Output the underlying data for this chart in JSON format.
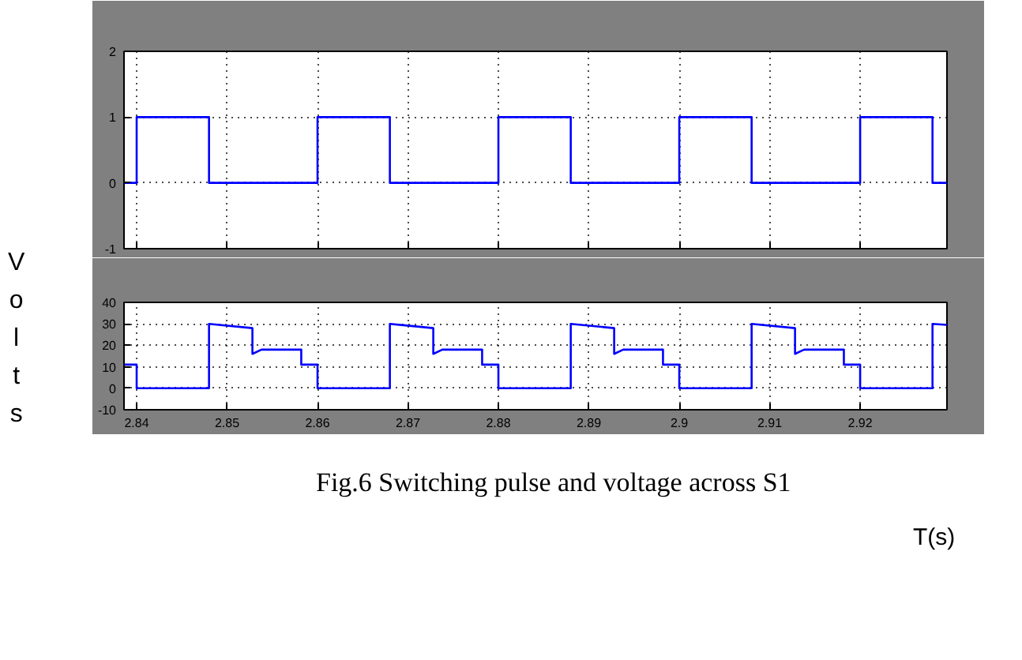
{
  "chart_data": [
    {
      "type": "line",
      "ylabel": "Volts",
      "xlim": [
        2.8386,
        2.9296
      ],
      "xticks": [
        2.84,
        2.85,
        2.86,
        2.87,
        2.88,
        2.89,
        2.9,
        2.91,
        2.92
      ],
      "ylim": [
        -1,
        2
      ],
      "yticks": [
        -1,
        0,
        1,
        2
      ],
      "tick_labels": "y",
      "grid": true,
      "series": [
        {
          "color": "#0000ff",
          "x": [
            2.8386,
            2.84,
            2.84,
            2.848,
            2.848,
            2.86,
            2.86,
            2.868,
            2.868,
            2.88,
            2.88,
            2.888,
            2.888,
            2.9,
            2.9,
            2.908,
            2.908,
            2.92,
            2.92,
            2.928,
            2.928,
            2.9296
          ],
          "values": [
            0,
            0,
            1,
            1,
            0,
            0,
            1,
            1,
            0,
            0,
            1,
            1,
            0,
            0,
            1,
            1,
            0,
            0,
            1,
            1,
            0,
            0
          ]
        }
      ]
    },
    {
      "type": "line",
      "xlabel": "T(s)",
      "annotations": [
        "Fig.6 Switching pulse and voltage across S1"
      ],
      "xlim": [
        2.8386,
        2.9296
      ],
      "xticks": [
        2.84,
        2.85,
        2.86,
        2.87,
        2.88,
        2.89,
        2.9,
        2.91,
        2.92
      ],
      "ylim": [
        -10,
        40
      ],
      "yticks": [
        -10,
        0,
        10,
        20,
        30,
        40
      ],
      "grid": true,
      "series": [
        {
          "color": "#0000ff",
          "x": [
            2.8386,
            2.84,
            2.84,
            2.848,
            2.848,
            2.8528,
            2.8528,
            2.8538,
            2.8582,
            2.8582,
            2.86,
            2.86,
            2.868,
            2.868,
            2.8728,
            2.8728,
            2.8738,
            2.8782,
            2.8782,
            2.88,
            2.88,
            2.888,
            2.888,
            2.8928,
            2.8928,
            2.8938,
            2.8982,
            2.8982,
            2.9,
            2.9,
            2.908,
            2.908,
            2.9128,
            2.9128,
            2.9138,
            2.9182,
            2.9182,
            2.92,
            2.92,
            2.928,
            2.928,
            2.9296
          ],
          "values": [
            11,
            11,
            0,
            0,
            30,
            28,
            16,
            18,
            18,
            11,
            11,
            0,
            0,
            30,
            28,
            16,
            18,
            18,
            11,
            11,
            0,
            0,
            30,
            28,
            16,
            18,
            18,
            11,
            11,
            0,
            0,
            30,
            28,
            16,
            18,
            18,
            11,
            11,
            0,
            0,
            30,
            29.5
          ]
        }
      ]
    }
  ]
}
